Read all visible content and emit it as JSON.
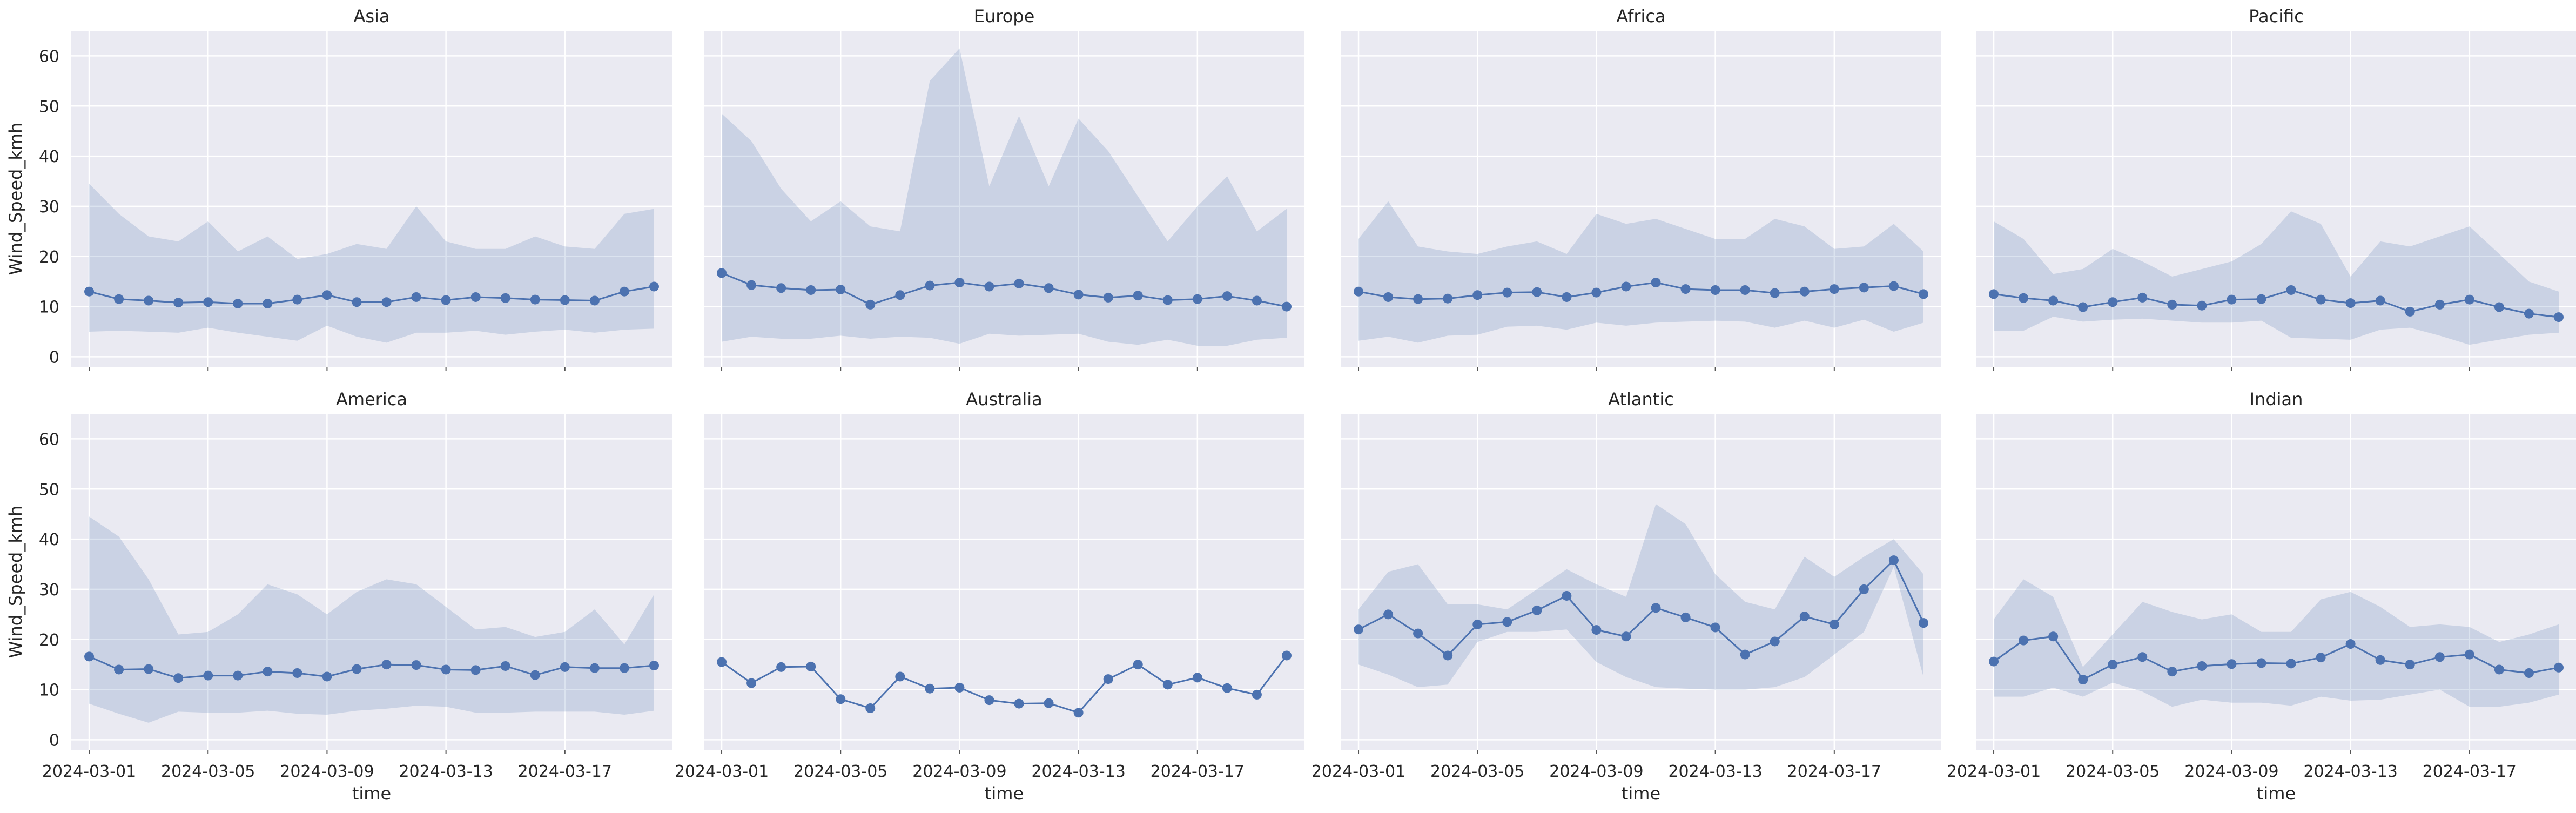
{
  "chart_data": {
    "type": "line",
    "layout": "facet-grid",
    "xlabel": "time",
    "ylabel": "Wind_Speed_kmh",
    "ylim": [
      -2,
      65
    ],
    "yticks": [
      0,
      10,
      20,
      30,
      40,
      50,
      60
    ],
    "x_dates": [
      "2024-03-01",
      "2024-03-02",
      "2024-03-03",
      "2024-03-04",
      "2024-03-05",
      "2024-03-06",
      "2024-03-07",
      "2024-03-08",
      "2024-03-09",
      "2024-03-10",
      "2024-03-11",
      "2024-03-12",
      "2024-03-13",
      "2024-03-14",
      "2024-03-15",
      "2024-03-16",
      "2024-03-17",
      "2024-03-18",
      "2024-03-19",
      "2024-03-20"
    ],
    "xticks": [
      "2024-03-01",
      "2024-03-05",
      "2024-03-09",
      "2024-03-13",
      "2024-03-17"
    ],
    "xlim_days": [
      -0.6,
      19.6
    ],
    "line_color": "#4c72b0",
    "band_color": "#4c72b0",
    "panels": [
      {
        "title": "Asia",
        "mean": [
          13.0,
          11.5,
          11.2,
          10.8,
          10.9,
          10.6,
          10.6,
          11.4,
          12.3,
          10.9,
          10.9,
          11.9,
          11.3,
          11.9,
          11.7,
          11.4,
          11.3,
          11.2,
          13.0,
          14.0
        ],
        "upper": [
          34.5,
          28.5,
          24.0,
          23.0,
          27.0,
          21.0,
          24.0,
          19.5,
          20.5,
          22.5,
          21.5,
          30.0,
          23.0,
          21.5,
          21.5,
          24.0,
          22.0,
          21.5,
          28.5,
          29.5
        ],
        "lower": [
          5.0,
          5.2,
          5.0,
          4.8,
          5.8,
          4.8,
          4.0,
          3.2,
          6.2,
          4.0,
          2.8,
          4.8,
          4.8,
          5.2,
          4.4,
          5.0,
          5.4,
          4.8,
          5.4,
          5.6
        ]
      },
      {
        "title": "Europe",
        "mean": [
          16.7,
          14.3,
          13.7,
          13.3,
          13.4,
          10.4,
          12.3,
          14.2,
          14.8,
          14.0,
          14.6,
          13.7,
          12.4,
          11.8,
          12.2,
          11.3,
          11.5,
          12.1,
          11.2,
          10.0
        ],
        "upper": [
          48.5,
          43.0,
          33.5,
          27.0,
          31.0,
          26.0,
          25.0,
          55.0,
          61.5,
          34.0,
          48.0,
          34.0,
          47.5,
          41.0,
          32.0,
          23.0,
          30.0,
          36.0,
          25.0,
          29.5
        ],
        "lower": [
          3.0,
          4.0,
          3.6,
          3.6,
          4.2,
          3.6,
          4.0,
          3.8,
          2.6,
          4.6,
          4.2,
          4.4,
          4.6,
          3.0,
          2.4,
          3.4,
          2.2,
          2.2,
          3.4,
          3.8
        ]
      },
      {
        "title": "Africa",
        "mean": [
          13.0,
          11.9,
          11.5,
          11.6,
          12.3,
          12.8,
          12.9,
          11.9,
          12.8,
          14.0,
          14.8,
          13.5,
          13.3,
          13.3,
          12.7,
          13.0,
          13.5,
          13.8,
          14.1,
          12.5
        ],
        "upper": [
          23.5,
          31.0,
          22.0,
          21.0,
          20.5,
          22.0,
          23.0,
          20.5,
          28.5,
          26.5,
          27.5,
          25.5,
          23.5,
          23.5,
          27.5,
          26.0,
          21.5,
          22.0,
          26.5,
          21.0
        ],
        "lower": [
          3.2,
          4.0,
          2.8,
          4.2,
          4.4,
          6.0,
          6.2,
          5.4,
          6.8,
          6.2,
          6.8,
          7.0,
          7.2,
          7.0,
          5.8,
          7.2,
          5.8,
          7.4,
          5.0,
          6.8
        ]
      },
      {
        "title": "Pacific",
        "mean": [
          12.5,
          11.7,
          11.2,
          9.9,
          10.9,
          11.8,
          10.4,
          10.2,
          11.4,
          11.5,
          13.3,
          11.4,
          10.7,
          11.2,
          9.0,
          10.4,
          11.4,
          9.9,
          8.6,
          7.9
        ],
        "upper": [
          27.0,
          23.5,
          16.5,
          17.5,
          21.5,
          19.0,
          16.0,
          17.5,
          19.0,
          22.5,
          29.0,
          26.5,
          16.0,
          23.0,
          22.0,
          24.0,
          26.0,
          20.5,
          15.0,
          13.0
        ],
        "lower": [
          5.2,
          5.2,
          8.0,
          7.0,
          7.4,
          7.6,
          7.2,
          6.8,
          6.8,
          7.2,
          3.8,
          3.6,
          3.4,
          5.4,
          5.8,
          4.2,
          2.4,
          3.4,
          4.4,
          4.8
        ]
      },
      {
        "title": "America",
        "mean": [
          16.6,
          14.0,
          14.1,
          12.3,
          12.8,
          12.8,
          13.6,
          13.3,
          12.6,
          14.1,
          15.0,
          14.9,
          14.0,
          13.9,
          14.7,
          12.9,
          14.5,
          14.3,
          14.3,
          14.8
        ],
        "upper": [
          44.5,
          40.5,
          32.0,
          21.0,
          21.5,
          25.0,
          31.0,
          29.0,
          25.0,
          29.5,
          32.0,
          31.0,
          26.5,
          22.0,
          22.5,
          20.5,
          21.5,
          26.0,
          19.0,
          29.0
        ],
        "lower": [
          7.2,
          5.2,
          3.4,
          5.6,
          5.4,
          5.4,
          5.8,
          5.2,
          5.0,
          5.8,
          6.2,
          6.8,
          6.6,
          5.4,
          5.4,
          5.6,
          5.6,
          5.6,
          5.0,
          5.8
        ]
      },
      {
        "title": "Australia",
        "mean": [
          15.5,
          11.3,
          14.5,
          14.6,
          8.1,
          6.3,
          12.6,
          10.2,
          10.4,
          7.9,
          7.2,
          7.3,
          5.4,
          12.1,
          15.0,
          11.0,
          12.4,
          10.3,
          9.0,
          16.8
        ],
        "upper": [
          15.5,
          11.3,
          14.5,
          14.6,
          8.1,
          6.3,
          12.6,
          10.2,
          10.4,
          7.9,
          7.2,
          7.3,
          5.4,
          12.1,
          15.0,
          11.0,
          12.4,
          10.3,
          9.0,
          16.8
        ],
        "lower": [
          15.5,
          11.3,
          14.5,
          14.6,
          8.1,
          6.3,
          12.6,
          10.2,
          10.4,
          7.9,
          7.2,
          7.3,
          5.4,
          12.1,
          15.0,
          11.0,
          12.4,
          10.3,
          9.0,
          16.8
        ]
      },
      {
        "title": "Atlantic",
        "mean": [
          22.0,
          25.0,
          21.2,
          16.8,
          23.0,
          23.5,
          25.8,
          28.7,
          21.9,
          20.6,
          26.3,
          24.4,
          22.4,
          17.0,
          19.6,
          24.6,
          23.0,
          30.0,
          35.8,
          23.3
        ],
        "upper": [
          26.0,
          33.5,
          35.0,
          27.0,
          27.0,
          26.0,
          30.0,
          34.0,
          31.0,
          28.5,
          47.0,
          43.0,
          33.0,
          27.5,
          26.0,
          36.5,
          32.5,
          36.5,
          40.0,
          33.0
        ],
        "lower": [
          15.0,
          13.0,
          10.5,
          11.0,
          19.5,
          21.5,
          21.5,
          22.0,
          15.5,
          12.5,
          10.5,
          10.2,
          10.0,
          10.0,
          10.5,
          12.5,
          17.0,
          21.5,
          34.5,
          12.5
        ]
      },
      {
        "title": "Indian",
        "mean": [
          15.6,
          19.8,
          20.6,
          12.0,
          15.0,
          16.5,
          13.6,
          14.7,
          15.1,
          15.3,
          15.2,
          16.4,
          19.1,
          15.9,
          15.0,
          16.5,
          17.0,
          14.0,
          13.3,
          14.4
        ],
        "upper": [
          24.0,
          32.0,
          28.5,
          14.5,
          21.0,
          27.5,
          25.5,
          24.0,
          25.0,
          21.5,
          21.5,
          28.0,
          29.5,
          26.5,
          22.5,
          23.0,
          22.5,
          19.5,
          21.0,
          23.0
        ],
        "lower": [
          8.6,
          8.6,
          10.4,
          8.6,
          11.4,
          9.6,
          6.6,
          8.0,
          7.4,
          7.4,
          6.8,
          8.6,
          7.8,
          8.0,
          9.0,
          10.0,
          6.6,
          6.6,
          7.4,
          9.0
        ]
      }
    ]
  }
}
